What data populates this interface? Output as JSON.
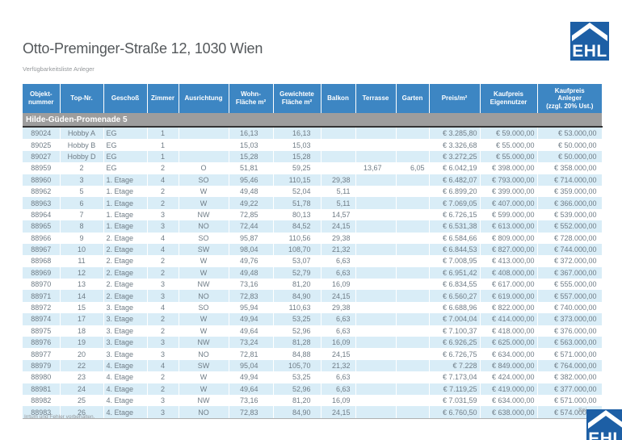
{
  "page": {
    "title": "Otto-Preminger-Straße 12, 1030 Wien",
    "subtitle": "Verfügbarkeitsliste Anleger",
    "footer_note": "Irrtum und Fehler vorbehalten.",
    "page_indicator": "Sei",
    "logo_text": "EHL"
  },
  "colors": {
    "header_blue": "#3d86c3",
    "row_alt_blue": "#d9edf7",
    "section_gray": "#9d9d9d",
    "logo_blue": "#1d5fa5",
    "data_text_gray": "#6f7c86"
  },
  "table": {
    "section_label": "Hilde-Güden-Promenade 5",
    "columns": [
      "Objekt-\nnummer",
      "Top-Nr.",
      "Geschoß",
      "Zimmer",
      "Ausrichtung",
      "Wohn-\nFläche m²",
      "Gewichtete\nFläche m²",
      "Balkon",
      "Terrasse",
      "Garten",
      "Preis/m²",
      "Kaufpreis\nEigennutzer",
      "Kaufpreis\nAnleger\n(zzgl. 20% Ust.)"
    ],
    "rows": [
      [
        "89024",
        "Hobby A",
        "EG",
        "1",
        "",
        "16,13",
        "16,13",
        "",
        "",
        "",
        "€ 3.285,80",
        "€ 59.000,00",
        "€ 53.000,00"
      ],
      [
        "89025",
        "Hobby B",
        "EG",
        "1",
        "",
        "15,03",
        "15,03",
        "",
        "",
        "",
        "€ 3.326,68",
        "€ 55.000,00",
        "€ 50.000,00"
      ],
      [
        "89027",
        "Hobby D",
        "EG",
        "1",
        "",
        "15,28",
        "15,28",
        "",
        "",
        "",
        "€ 3.272,25",
        "€ 55.000,00",
        "€ 50.000,00"
      ],
      [
        "88959",
        "2",
        "EG",
        "2",
        "O",
        "51,81",
        "59,25",
        "",
        "13,67",
        "6,05",
        "€ 6.042,19",
        "€ 398.000,00",
        "€ 358.000,00"
      ],
      [
        "88960",
        "3",
        "1. Etage",
        "4",
        "SO",
        "95,46",
        "110,15",
        "29,38",
        "",
        "",
        "€ 6.482,07",
        "€ 793.000,00",
        "€ 714.000,00"
      ],
      [
        "88962",
        "5",
        "1. Etage",
        "2",
        "W",
        "49,48",
        "52,04",
        "5,11",
        "",
        "",
        "€ 6.899,20",
        "€ 399.000,00",
        "€ 359.000,00"
      ],
      [
        "88963",
        "6",
        "1. Etage",
        "2",
        "W",
        "49,22",
        "51,78",
        "5,11",
        "",
        "",
        "€ 7.069,05",
        "€ 407.000,00",
        "€ 366.000,00"
      ],
      [
        "88964",
        "7",
        "1. Etage",
        "3",
        "NW",
        "72,85",
        "80,13",
        "14,57",
        "",
        "",
        "€ 6.726,15",
        "€ 599.000,00",
        "€ 539.000,00"
      ],
      [
        "88965",
        "8",
        "1. Etage",
        "3",
        "NO",
        "72,44",
        "84,52",
        "24,15",
        "",
        "",
        "€ 6.531,38",
        "€ 613.000,00",
        "€ 552.000,00"
      ],
      [
        "88966",
        "9",
        "2. Etage",
        "4",
        "SO",
        "95,87",
        "110,56",
        "29,38",
        "",
        "",
        "€ 6.584,66",
        "€ 809.000,00",
        "€ 728.000,00"
      ],
      [
        "88967",
        "10",
        "2. Etage",
        "4",
        "SW",
        "98,04",
        "108,70",
        "21,32",
        "",
        "",
        "€ 6.844,53",
        "€ 827.000,00",
        "€ 744.000,00"
      ],
      [
        "88968",
        "11",
        "2. Etage",
        "2",
        "W",
        "49,76",
        "53,07",
        "6,63",
        "",
        "",
        "€ 7.008,95",
        "€ 413.000,00",
        "€ 372.000,00"
      ],
      [
        "88969",
        "12",
        "2. Etage",
        "2",
        "W",
        "49,48",
        "52,79",
        "6,63",
        "",
        "",
        "€ 6.951,42",
        "€ 408.000,00",
        "€ 367.000,00"
      ],
      [
        "88970",
        "13",
        "2. Etage",
        "3",
        "NW",
        "73,16",
        "81,20",
        "16,09",
        "",
        "",
        "€ 6.834,55",
        "€ 617.000,00",
        "€ 555.000,00"
      ],
      [
        "88971",
        "14",
        "2. Etage",
        "3",
        "NO",
        "72,83",
        "84,90",
        "24,15",
        "",
        "",
        "€ 6.560,27",
        "€ 619.000,00",
        "€ 557.000,00"
      ],
      [
        "88972",
        "15",
        "3. Etage",
        "4",
        "SO",
        "95,94",
        "110,63",
        "29,38",
        "",
        "",
        "€ 6.688,96",
        "€ 822.000,00",
        "€ 740.000,00"
      ],
      [
        "88974",
        "17",
        "3. Etage",
        "2",
        "W",
        "49,94",
        "53,25",
        "6,63",
        "",
        "",
        "€ 7.004,04",
        "€ 414.000,00",
        "€ 373.000,00"
      ],
      [
        "88975",
        "18",
        "3. Etage",
        "2",
        "W",
        "49,64",
        "52,96",
        "6,63",
        "",
        "",
        "€ 7.100,37",
        "€ 418.000,00",
        "€ 376.000,00"
      ],
      [
        "88976",
        "19",
        "3. Etage",
        "3",
        "NW",
        "73,24",
        "81,28",
        "16,09",
        "",
        "",
        "€ 6.926,25",
        "€ 625.000,00",
        "€ 563.000,00"
      ],
      [
        "88977",
        "20",
        "3. Etage",
        "3",
        "NO",
        "72,81",
        "84,88",
        "24,15",
        "",
        "",
        "€ 6.726,75",
        "€ 634.000,00",
        "€ 571.000,00"
      ],
      [
        "88979",
        "22",
        "4. Etage",
        "4",
        "SW",
        "95,04",
        "105,70",
        "21,32",
        "",
        "",
        "€ 7.228",
        "€ 849.000,00",
        "€ 764.000,00"
      ],
      [
        "88980",
        "23",
        "4. Etage",
        "2",
        "W",
        "49,94",
        "53,25",
        "6,63",
        "",
        "",
        "€ 7.173,04",
        "€ 424.000,00",
        "€ 382.000,00"
      ],
      [
        "88981",
        "24",
        "4. Etage",
        "2",
        "W",
        "49,64",
        "52,96",
        "6,63",
        "",
        "",
        "€ 7.119,25",
        "€ 419.000,00",
        "€ 377.000,00"
      ],
      [
        "88982",
        "25",
        "4. Etage",
        "3",
        "NW",
        "73,16",
        "81,20",
        "16,09",
        "",
        "",
        "€ 7.031,59",
        "€ 634.000,00",
        "€ 571.000,00"
      ],
      [
        "88983",
        "26",
        "4. Etage",
        "3",
        "NO",
        "72,83",
        "84,90",
        "24,15",
        "",
        "",
        "€ 6.760,50",
        "€ 638.000,00",
        "€ 574.000,00"
      ]
    ]
  }
}
